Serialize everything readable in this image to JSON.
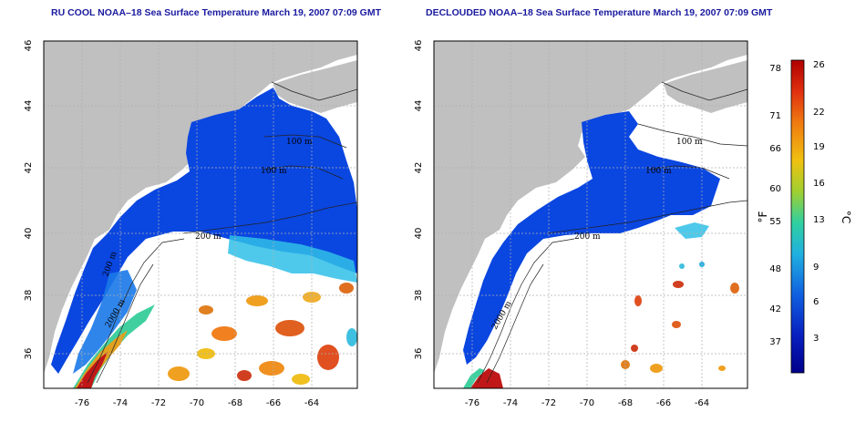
{
  "panels": [
    {
      "title": "RU COOL NOAA–18 Sea Surface Temperature March 19, 2007 07:09 GMT",
      "contour_labels": [
        "100 m",
        "100 m",
        "200 m",
        "2000 m",
        "200 m"
      ]
    },
    {
      "title": "DECLOUDED NOAA–18 Sea Surface Temperature March 19, 2007 07:09 GMT",
      "contour_labels": [
        "100 m",
        "100 m",
        "200 m",
        "2000 m"
      ]
    }
  ],
  "axes": {
    "lon_ticks": [
      "-76",
      "-74",
      "-72",
      "-70",
      "-68",
      "-66",
      "-64"
    ],
    "lat_ticks": [
      "36",
      "38",
      "40",
      "42",
      "44",
      "46"
    ]
  },
  "colorbar": {
    "fahrenheit_ticks": [
      "78",
      "71",
      "66",
      "60",
      "55",
      "48",
      "42",
      "37"
    ],
    "celsius_ticks": [
      "26",
      "22",
      "19",
      "16",
      "13",
      "9",
      "6",
      "3"
    ],
    "fahrenheit_label": "°F",
    "celsius_label": "°C",
    "colors": [
      "#b00000",
      "#e03010",
      "#f07a10",
      "#f0c010",
      "#a0d030",
      "#30d0a0",
      "#20b0e0",
      "#1060e0",
      "#0820c0",
      "#00008a"
    ]
  },
  "colors": {
    "land": "#c0c0c0",
    "title": "#1a1aa0",
    "grid": "#b0b0b0"
  }
}
